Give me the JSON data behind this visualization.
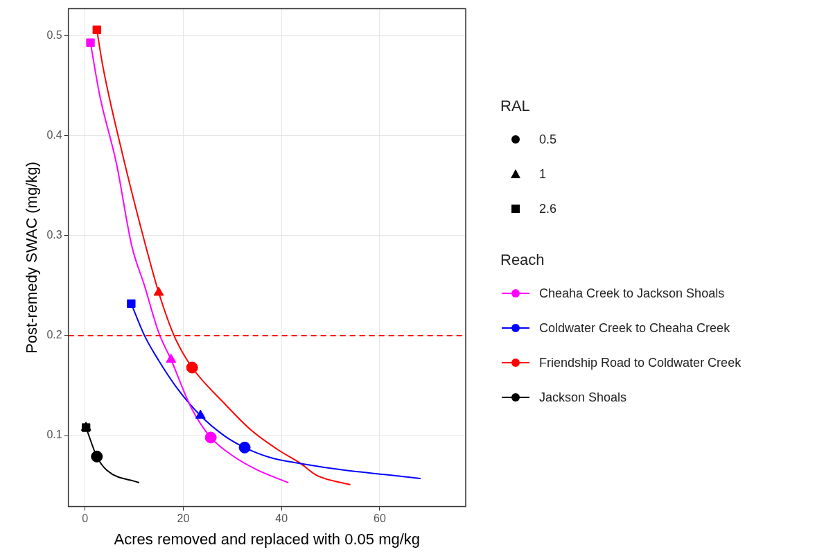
{
  "chart_data": {
    "type": "line",
    "xlabel": "Acres removed and replaced with 0.05 mg/kg",
    "ylabel": "Post-remedy SWAC (mg/kg)",
    "legend_title": [
      "RAL",
      "Reach"
    ],
    "xlim": [
      -3.4,
      77.5
    ],
    "xticks": [
      0,
      20,
      40,
      60
    ],
    "ylim": [
      0.029,
      0.527
    ],
    "yticks": [
      0.1,
      0.2,
      0.3,
      0.4,
      0.5
    ],
    "grid": true,
    "legend": "right",
    "line_style": "solid",
    "ref_lines": [
      {
        "axis": "y",
        "value": 0.2,
        "color": "#ff0000",
        "line_style": "dashed"
      }
    ],
    "series": [
      {
        "type": "scatter",
        "name": "0.5",
        "marker": "circle",
        "color": "#000000",
        "x": [
          25.6,
          32.5,
          21.8,
          2.4
        ],
        "values": [
          0.098,
          0.088,
          0.168,
          0.079
        ],
        "colors": [
          "#ff00ff",
          "#0000ff",
          "#ff0000",
          "#000000"
        ]
      },
      {
        "type": "scatter",
        "name": "1",
        "marker": "triangle",
        "color": "#000000",
        "x": [
          17.5,
          23.5,
          15.0,
          0.2
        ],
        "values": [
          0.176,
          0.12,
          0.243,
          0.108
        ],
        "colors": [
          "#ff00ff",
          "#0000ff",
          "#ff0000",
          "#000000"
        ]
      },
      {
        "type": "scatter",
        "name": "2.6",
        "marker": "square",
        "color": "#000000",
        "x": [
          1.1,
          9.4,
          2.4,
          0.2
        ],
        "values": [
          0.493,
          0.232,
          0.506,
          0.108
        ],
        "colors": [
          "#ff00ff",
          "#0000ff",
          "#ff0000",
          "#000000"
        ]
      },
      {
        "name": "Cheaha Creek to Jackson Shoals",
        "color": "#ff00ff",
        "marker": "none",
        "x": [
          1.1,
          3,
          6.4,
          9.5,
          12.1,
          15,
          17.5,
          21.6,
          25.6,
          30.6,
          34.9,
          41.3
        ],
        "values": [
          0.493,
          0.44,
          0.372,
          0.29,
          0.25,
          0.203,
          0.176,
          0.128,
          0.098,
          0.078,
          0.066,
          0.053
        ]
      },
      {
        "name": "Coldwater Creek to Cheaha Creek",
        "color": "#0000ff",
        "marker": "none",
        "x": [
          9.4,
          12.1,
          15,
          18.8,
          23.5,
          28.3,
          32.5,
          37.7,
          43.9,
          53.4,
          61.0,
          68.2
        ],
        "values": [
          0.232,
          0.2,
          0.175,
          0.147,
          0.12,
          0.1,
          0.088,
          0.078,
          0.072,
          0.065,
          0.061,
          0.057
        ]
      },
      {
        "name": "Friendship Road to Coldwater Creek",
        "color": "#ff0000",
        "marker": "none",
        "x": [
          2.4,
          3.6,
          7.4,
          12.6,
          15.0,
          18.3,
          21.8,
          28.2,
          33.9,
          39.2,
          43.9,
          47.2,
          53.9
        ],
        "values": [
          0.506,
          0.47,
          0.386,
          0.285,
          0.243,
          0.198,
          0.168,
          0.133,
          0.105,
          0.086,
          0.072,
          0.06,
          0.051
        ]
      },
      {
        "name": "Jackson Shoals",
        "color": "#000000",
        "marker": "none",
        "x": [
          0.2,
          2.4,
          4.5,
          10.9
        ],
        "values": [
          0.108,
          0.079,
          0.065,
          0.053
        ]
      }
    ]
  }
}
